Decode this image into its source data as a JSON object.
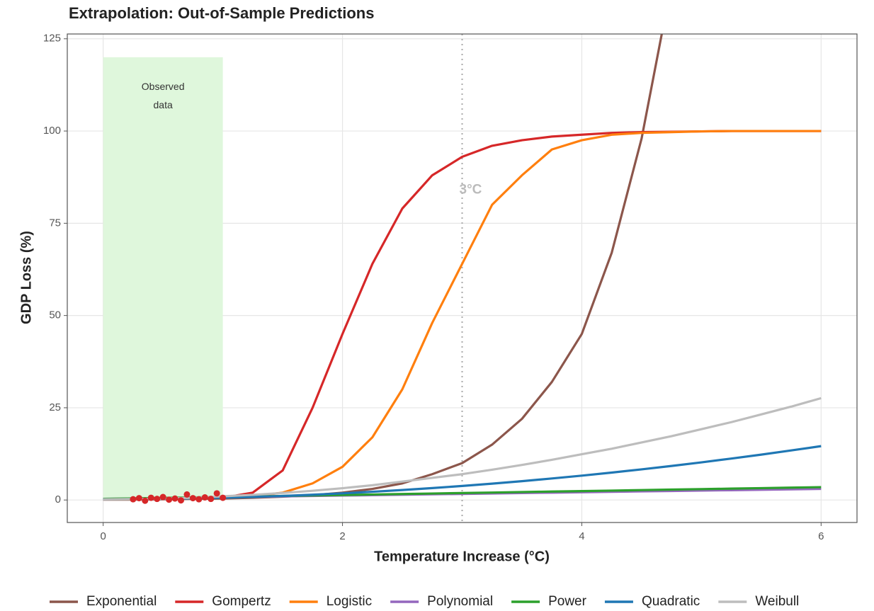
{
  "chart_data": {
    "type": "line",
    "title": "Extrapolation: Out-of-Sample Predictions",
    "x_label": "Temperature Increase (°C)",
    "y_label": "GDP Loss (%)",
    "xlim": [
      -0.3,
      6.3
    ],
    "ylim": [
      -6.1,
      126.3
    ],
    "xticks": [
      0,
      2,
      4,
      6
    ],
    "yticks": [
      0,
      25,
      50,
      75,
      100,
      125
    ],
    "grid": true,
    "legend": "bottom",
    "shade": {
      "xlim": [
        0,
        1
      ],
      "ylim": [
        0,
        120
      ],
      "label": "Observed data",
      "color": "#dff7dc"
    },
    "vline": {
      "x": 3,
      "label": "3°C"
    },
    "observed": {
      "color": "#d62728",
      "x": [
        0.25,
        0.3,
        0.35,
        0.4,
        0.45,
        0.5,
        0.55,
        0.6,
        0.65,
        0.7,
        0.75,
        0.8,
        0.85,
        0.9,
        0.95,
        1.0
      ],
      "values": [
        0.2,
        0.5,
        -0.2,
        0.6,
        0.3,
        0.8,
        0.1,
        0.4,
        -0.1,
        1.5,
        0.5,
        0.2,
        0.7,
        0.3,
        1.8,
        0.6
      ]
    },
    "x": [
      0,
      0.25,
      0.5,
      0.75,
      1,
      1.25,
      1.5,
      1.75,
      2,
      2.25,
      2.5,
      2.75,
      3,
      3.25,
      3.5,
      3.75,
      4,
      4.25,
      4.5,
      4.75,
      5,
      5.25,
      5.5,
      5.75,
      6
    ],
    "series": [
      {
        "name": "Exponential",
        "color": "#8c564b",
        "values": [
          0.1,
          0.1,
          0.2,
          0.3,
          0.4,
          0.6,
          0.9,
          1.3,
          2,
          3,
          4.5,
          7,
          10,
          15,
          22,
          32,
          45,
          67,
          98,
          140,
          null,
          null,
          null,
          null,
          null
        ]
      },
      {
        "name": "Gompertz",
        "color": "#d62728",
        "values": [
          0.3,
          0.3,
          0.3,
          0.4,
          0.6,
          2,
          8,
          25,
          45,
          64,
          79,
          88,
          93,
          96,
          97.5,
          98.5,
          99,
          99.5,
          99.7,
          99.8,
          99.9,
          100,
          100,
          100,
          100
        ]
      },
      {
        "name": "Logistic",
        "color": "#ff7f0e",
        "values": [
          0.2,
          0.2,
          0.3,
          0.4,
          0.6,
          1,
          2,
          4.5,
          9,
          17,
          30,
          48,
          64,
          80,
          88,
          95,
          97.5,
          99,
          99.5,
          99.7,
          99.9,
          100,
          100,
          100,
          100
        ]
      },
      {
        "name": "Polynomial",
        "color": "#9467bd",
        "values": [
          0.3,
          0.41,
          0.53,
          0.64,
          0.75,
          0.86,
          0.98,
          1.09,
          1.2,
          1.31,
          1.43,
          1.54,
          1.65,
          1.76,
          1.88,
          1.99,
          2.1,
          2.21,
          2.33,
          2.44,
          2.55,
          2.66,
          2.78,
          2.89,
          3.0
        ]
      },
      {
        "name": "Power",
        "color": "#2ca02c",
        "values": [
          0.3,
          0.43,
          0.57,
          0.7,
          0.83,
          0.96,
          1.1,
          1.23,
          1.36,
          1.49,
          1.63,
          1.76,
          1.89,
          2.02,
          2.16,
          2.29,
          2.42,
          2.55,
          2.69,
          2.82,
          2.95,
          3.08,
          3.22,
          3.35,
          3.48
        ]
      },
      {
        "name": "Quadratic",
        "color": "#1f77b4",
        "values": [
          0.2,
          0.23,
          0.3,
          0.43,
          0.6,
          0.83,
          1.1,
          1.43,
          1.8,
          2.23,
          2.7,
          3.23,
          3.8,
          4.43,
          5.1,
          5.83,
          6.6,
          7.43,
          8.3,
          9.23,
          10.2,
          11.23,
          12.3,
          13.43,
          14.6
        ]
      },
      {
        "name": "Weibull",
        "color": "#bdbdbd",
        "values": [
          0.2,
          0.25,
          0.4,
          0.6,
          1,
          1.4,
          1.9,
          2.5,
          3.2,
          4,
          5,
          6,
          7,
          8.2,
          9.5,
          10.9,
          12.4,
          13.9,
          15.6,
          17.3,
          19.2,
          21.1,
          23.2,
          25.3,
          27.6
        ]
      }
    ]
  }
}
